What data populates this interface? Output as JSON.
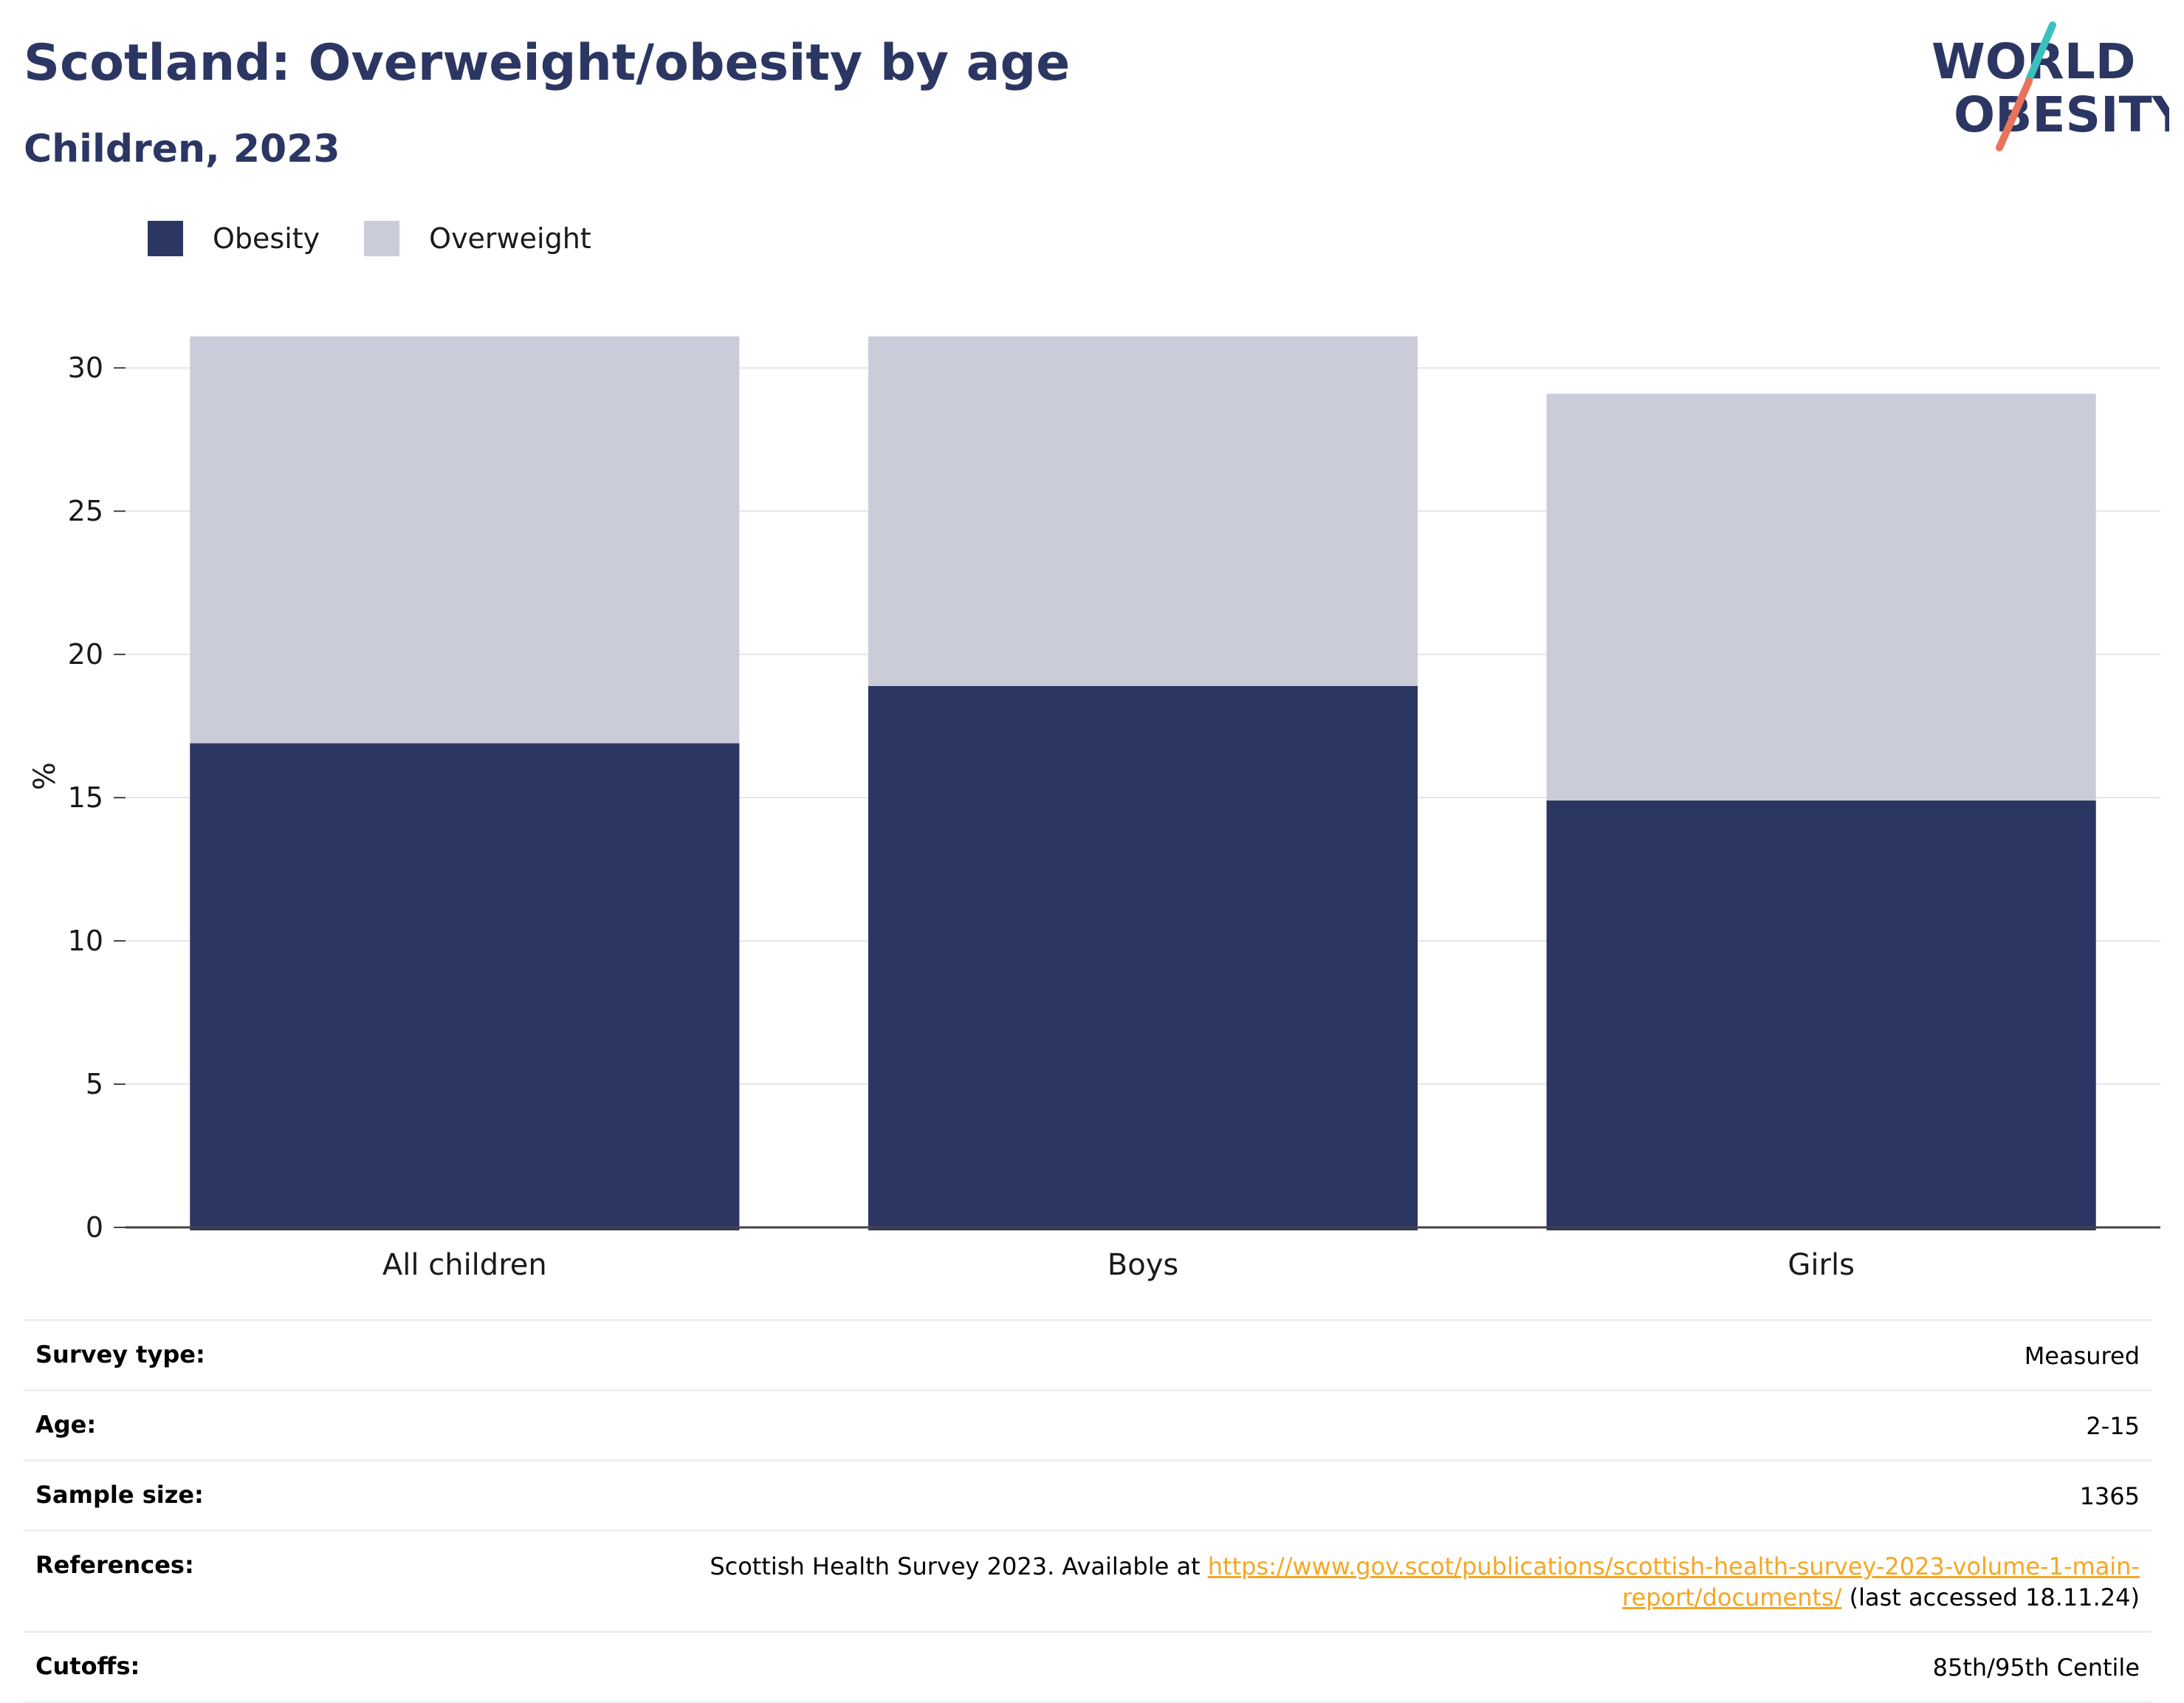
{
  "title": "Scotland: Overweight/obesity by age",
  "subtitle": "Children, 2023",
  "logo": {
    "line1": "WORLD",
    "line2": "OBESITY"
  },
  "colors": {
    "obesity": "#2b3663",
    "overweight": "#cacdd9",
    "title": "#2b3663",
    "link": "#f5a623",
    "logo_teal": "#3bbfbf",
    "logo_orange": "#e8735a"
  },
  "legend": [
    {
      "label": "Obesity",
      "color": "#2b3663"
    },
    {
      "label": "Overweight",
      "color": "#cacdd9"
    }
  ],
  "chart_data": {
    "type": "bar",
    "stacked": true,
    "categories": [
      "All children",
      "Boys",
      "Girls"
    ],
    "series": [
      {
        "name": "Obesity",
        "values": [
          16.9,
          18.9,
          14.9
        ]
      },
      {
        "name": "Overweight",
        "values": [
          14.2,
          12.2,
          14.2
        ]
      }
    ],
    "totals": [
      31.1,
      31.1,
      29.1
    ],
    "ylabel": "%",
    "ylim": [
      0,
      31.5
    ],
    "yticks": [
      0,
      5,
      10,
      15,
      20,
      25,
      30
    ],
    "grid": true,
    "legend_position": "top-left"
  },
  "info": {
    "survey_type": {
      "label": "Survey type:",
      "value": "Measured"
    },
    "age": {
      "label": "Age:",
      "value": "2-15"
    },
    "sample_size": {
      "label": "Sample size:",
      "value": "1365"
    },
    "references": {
      "label": "References:",
      "prefix": "Scottish Health Survey 2023. Available at ",
      "link1": "https://www.gov.scot/publications/scottish-health-survey-2023-volume-1-main-",
      "link2": "report/documents/",
      "suffix": " (last accessed 18.11.24)"
    },
    "cutoffs": {
      "label": "Cutoffs:",
      "value": "85th/95th Centile"
    }
  }
}
